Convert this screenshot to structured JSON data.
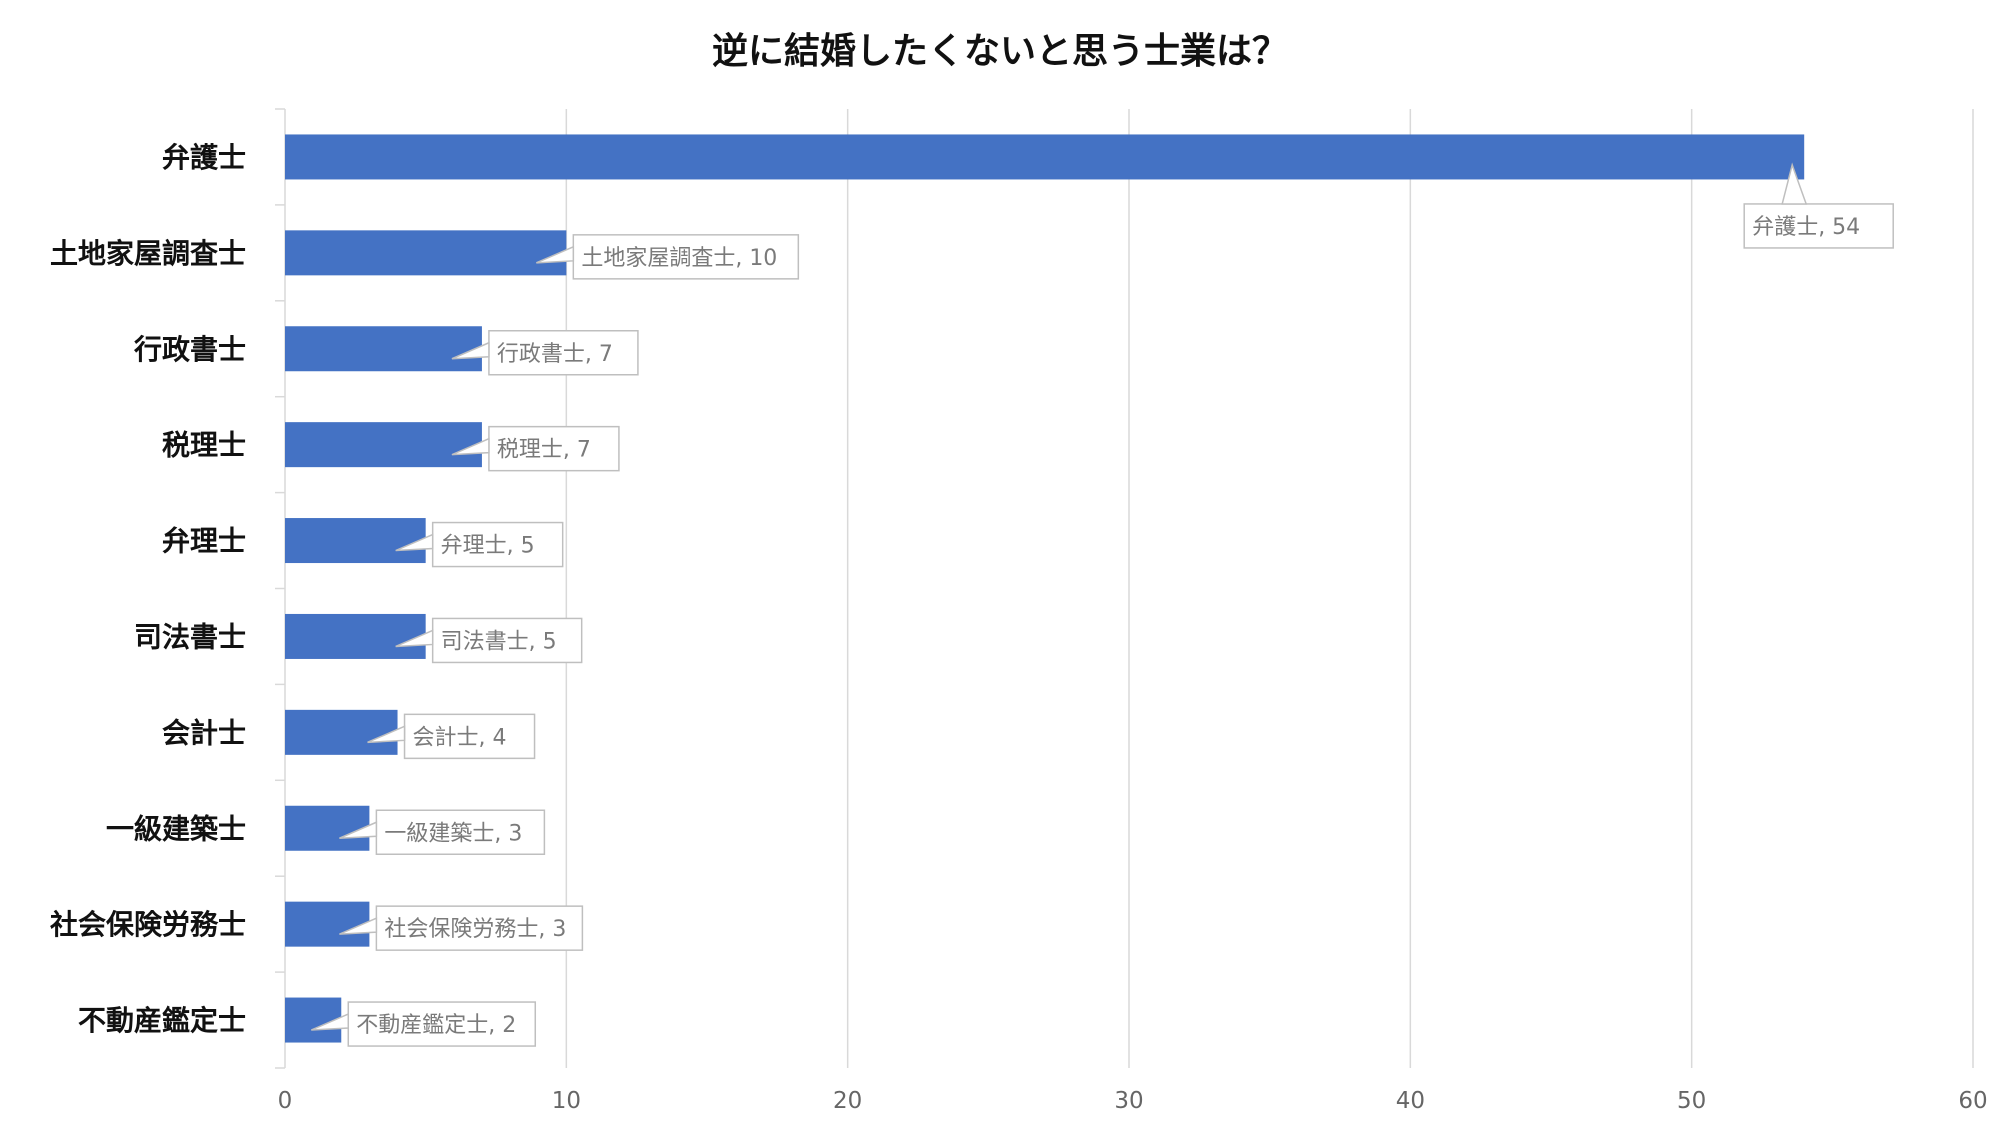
{
  "chart_data": {
    "type": "bar",
    "orientation": "horizontal",
    "title": "逆に結婚したくないと思う士業は？",
    "categories": [
      "弁護士",
      "土地家屋調査士",
      "行政書士",
      "税理士",
      "弁理士",
      "司法書士",
      "会計士",
      "一級建築士",
      "社会保険労務士",
      "不動産鑑定士"
    ],
    "values": [
      54,
      10,
      7,
      7,
      5,
      5,
      4,
      3,
      3,
      2
    ],
    "data_labels": [
      "弁護士, 54",
      "土地家屋調査士, 10",
      "行政書士, 7",
      "税理士, 7",
      "弁理士, 5",
      "司法書士, 5",
      "会計士, 4",
      "一級建築士, 3",
      "社会保険労務士, 3",
      "不動産鑑定士, 2"
    ],
    "xlim": [
      0,
      60
    ],
    "xticks": [
      "0",
      "10",
      "20",
      "30",
      "40",
      "50",
      "60"
    ],
    "xlabel": "",
    "ylabel": "",
    "grid": "vertical",
    "bar_color": "#4472C4"
  }
}
